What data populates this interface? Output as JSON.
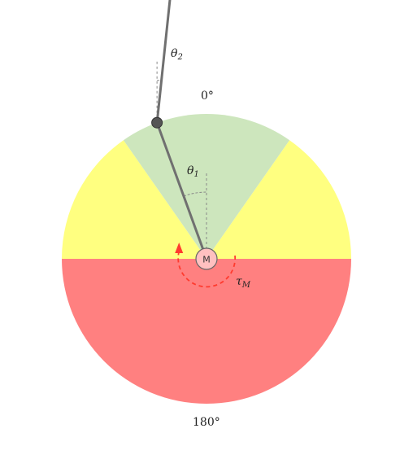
{
  "diagram": {
    "labels": {
      "theta1_symbol": "θ",
      "theta1_sub": "1",
      "theta2_symbol": "θ",
      "theta2_sub": "2",
      "torque_symbol": "τ",
      "torque_sub": "M",
      "top_angle": "0°",
      "bottom_angle": "180°",
      "motor": "M"
    },
    "angles": {
      "theta1_deg": 20,
      "theta2_deg": 26
    },
    "regions": [
      {
        "name": "green-zone",
        "from_deg": -35,
        "to_deg": 35,
        "color": "#cde6bd"
      },
      {
        "name": "yellow-zone-left",
        "from_deg": -90,
        "to_deg": -35,
        "color": "#ffff80"
      },
      {
        "name": "yellow-zone-right",
        "from_deg": 35,
        "to_deg": 90,
        "color": "#ffff80"
      },
      {
        "name": "red-zone",
        "from_deg": 90,
        "to_deg": 270,
        "color": "#ff8080"
      }
    ],
    "colors": {
      "link": "#707070",
      "joint": "#555555",
      "motor_fill": "#ffc0c0",
      "torque_arrow": "#ff3b2f",
      "dash": "#888888"
    }
  }
}
